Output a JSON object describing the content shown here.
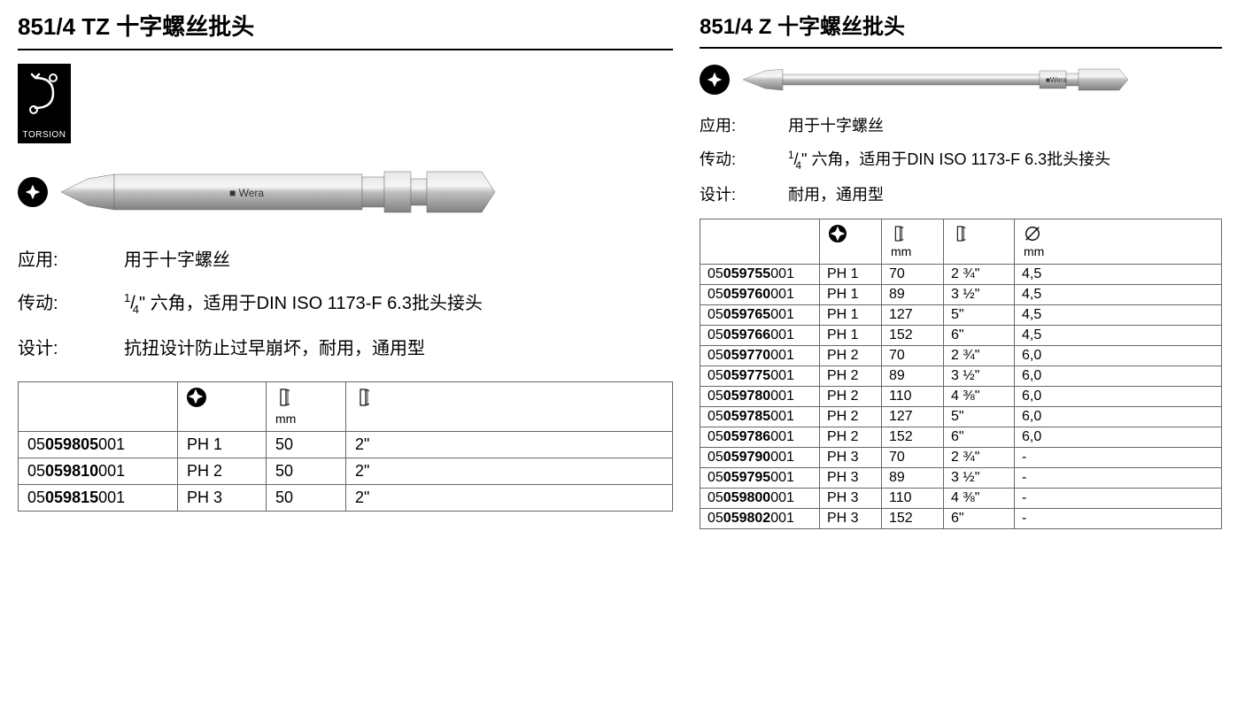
{
  "left": {
    "title": "851/4 TZ 十字螺丝批头",
    "torsion_label": "TORSION",
    "specs": {
      "application_label": "应用:",
      "application_value": "用于十字螺丝",
      "drive_label": "传动:",
      "drive_prefix": "¼\" 六角，适用于DIN ISO 1173-F 6.3批头接头",
      "design_label": "设计:",
      "design_value": "抗扭设计防止过早崩坏，耐用，通用型"
    },
    "table": {
      "unit_mm": "mm",
      "columns": [
        "partnum",
        "phillips",
        "length_mm",
        "length_in"
      ],
      "rows": [
        {
          "pre": "05",
          "mid": "059805",
          "suf": "001",
          "ph": "PH 1",
          "mm": "50",
          "in": "2\""
        },
        {
          "pre": "05",
          "mid": "059810",
          "suf": "001",
          "ph": "PH 2",
          "mm": "50",
          "in": "2\""
        },
        {
          "pre": "05",
          "mid": "059815",
          "suf": "001",
          "ph": "PH 3",
          "mm": "50",
          "in": "2\""
        }
      ]
    }
  },
  "right": {
    "title": "851/4 Z 十字螺丝批头",
    "specs": {
      "application_label": "应用:",
      "application_value": "用于十字螺丝",
      "drive_label": "传动:",
      "drive_value": "¼\" 六角，适用于DIN ISO 1173-F 6.3批头接头",
      "design_label": "设计:",
      "design_value": "耐用，通用型"
    },
    "table": {
      "unit_mm": "mm",
      "unit_mm2": "mm",
      "rows": [
        {
          "pre": "05",
          "mid": "059755",
          "suf": "001",
          "ph": "PH 1",
          "mm": "70",
          "in": "2 ¾\"",
          "dia": "4,5"
        },
        {
          "pre": "05",
          "mid": "059760",
          "suf": "001",
          "ph": "PH 1",
          "mm": "89",
          "in": "3 ½\"",
          "dia": "4,5"
        },
        {
          "pre": "05",
          "mid": "059765",
          "suf": "001",
          "ph": "PH 1",
          "mm": "127",
          "in": "5\"",
          "dia": "4,5"
        },
        {
          "pre": "05",
          "mid": "059766",
          "suf": "001",
          "ph": "PH 1",
          "mm": "152",
          "in": "6\"",
          "dia": "4,5"
        },
        {
          "pre": "05",
          "mid": "059770",
          "suf": "001",
          "ph": "PH 2",
          "mm": "70",
          "in": "2 ¾\"",
          "dia": "6,0"
        },
        {
          "pre": "05",
          "mid": "059775",
          "suf": "001",
          "ph": "PH 2",
          "mm": "89",
          "in": "3 ½\"",
          "dia": "6,0"
        },
        {
          "pre": "05",
          "mid": "059780",
          "suf": "001",
          "ph": "PH 2",
          "mm": "110",
          "in": "4 ⅜\"",
          "dia": "6,0"
        },
        {
          "pre": "05",
          "mid": "059785",
          "suf": "001",
          "ph": "PH 2",
          "mm": "127",
          "in": "5\"",
          "dia": "6,0"
        },
        {
          "pre": "05",
          "mid": "059786",
          "suf": "001",
          "ph": "PH 2",
          "mm": "152",
          "in": "6\"",
          "dia": "6,0"
        },
        {
          "pre": "05",
          "mid": "059790",
          "suf": "001",
          "ph": "PH 3",
          "mm": "70",
          "in": "2 ¾\"",
          "dia": "-"
        },
        {
          "pre": "05",
          "mid": "059795",
          "suf": "001",
          "ph": "PH 3",
          "mm": "89",
          "in": "3 ½\"",
          "dia": "-"
        },
        {
          "pre": "05",
          "mid": "059800",
          "suf": "001",
          "ph": "PH 3",
          "mm": "110",
          "in": "4 ⅜\"",
          "dia": "-"
        },
        {
          "pre": "05",
          "mid": "059802",
          "suf": "001",
          "ph": "PH 3",
          "mm": "152",
          "in": "6\"",
          "dia": "-"
        }
      ]
    }
  },
  "colors": {
    "text": "#000000",
    "border": "#666666",
    "bg": "#ffffff",
    "bit_metal_light": "#d8d8d8",
    "bit_metal_dark": "#9a9a9a"
  }
}
